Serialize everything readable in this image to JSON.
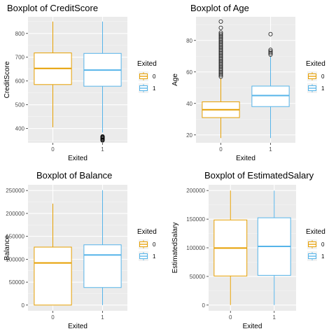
{
  "colors": {
    "group0": "#E69F00",
    "group1": "#56B4E9",
    "panel": "#EBEBEB",
    "grid_major": "#FFFFFF",
    "grid_minor": "#F5F5F5"
  },
  "chart_data": [
    {
      "type": "boxplot",
      "title": "Boxplot of CreditScore",
      "xlabel": "Exited",
      "ylabel": "CreditScore",
      "categories": [
        "0",
        "1"
      ],
      "ylim": [
        340,
        870
      ],
      "yticks": [
        400,
        500,
        600,
        700,
        800
      ],
      "ytick_labels": [
        "400",
        "500",
        "600",
        "700",
        "800"
      ],
      "grid": true,
      "legend": {
        "title": "Exited",
        "position": "right",
        "entries": [
          "0",
          "1"
        ]
      },
      "boxes": [
        {
          "category": "0",
          "whisker_low": 405,
          "q1": 585,
          "median": 653,
          "q3": 718,
          "whisker_high": 850,
          "outliers": []
        },
        {
          "category": "1",
          "whisker_low": 383,
          "q1": 578,
          "median": 646,
          "q3": 716,
          "whisker_high": 850,
          "outliers": [
            350,
            352,
            355,
            358,
            360,
            363,
            365,
            367
          ]
        }
      ]
    },
    {
      "type": "boxplot",
      "title": "Boxplot of Age",
      "xlabel": "Exited",
      "ylabel": "Age",
      "categories": [
        "0",
        "1"
      ],
      "ylim": [
        15,
        95
      ],
      "yticks": [
        20,
        40,
        60,
        80
      ],
      "ytick_labels": [
        "20",
        "40",
        "60",
        "80"
      ],
      "grid": true,
      "legend": {
        "title": "Exited",
        "position": "right",
        "entries": [
          "0",
          "1"
        ]
      },
      "boxes": [
        {
          "category": "0",
          "whisker_low": 18,
          "q1": 31,
          "median": 36,
          "q3": 41,
          "whisker_high": 56,
          "outliers": [
            57,
            58,
            59,
            60,
            61,
            62,
            63,
            64,
            65,
            66,
            67,
            68,
            69,
            70,
            71,
            72,
            73,
            74,
            75,
            76,
            77,
            78,
            79,
            80,
            81,
            82,
            83,
            84,
            85,
            88,
            92
          ]
        },
        {
          "category": "1",
          "whisker_low": 18,
          "q1": 38,
          "median": 45,
          "q3": 51,
          "whisker_high": 70,
          "outliers": [
            71,
            72,
            73,
            74,
            84
          ]
        }
      ]
    },
    {
      "type": "boxplot",
      "title": "Boxplot of Balance",
      "xlabel": "Exited",
      "ylabel": "Balance",
      "categories": [
        "0",
        "1"
      ],
      "ylim": [
        -12500,
        262500
      ],
      "yticks": [
        0,
        50000,
        100000,
        150000,
        200000,
        250000
      ],
      "ytick_labels": [
        "0",
        "50000",
        "100000",
        "150000",
        "200000",
        "250000"
      ],
      "grid": true,
      "legend": {
        "title": "Exited",
        "position": "right",
        "entries": [
          "0",
          "1"
        ]
      },
      "boxes": [
        {
          "category": "0",
          "whisker_low": 0,
          "q1": 0,
          "median": 92000,
          "q3": 126500,
          "whisker_high": 221500,
          "outliers": []
        },
        {
          "category": "1",
          "whisker_low": 0,
          "q1": 38300,
          "median": 109300,
          "q3": 131500,
          "whisker_high": 250900,
          "outliers": []
        }
      ]
    },
    {
      "type": "boxplot",
      "title": "Boxplot of EstimatedSalary",
      "xlabel": "Exited",
      "ylabel": "EstimatedSalary",
      "categories": [
        "0",
        "1"
      ],
      "ylim": [
        -10000,
        210000
      ],
      "yticks": [
        0,
        50000,
        100000,
        150000,
        200000
      ],
      "ytick_labels": [
        "0",
        "50000",
        "100000",
        "150000",
        "200000"
      ],
      "grid": true,
      "legend": {
        "title": "Exited",
        "position": "right",
        "entries": [
          "0",
          "1"
        ]
      },
      "boxes": [
        {
          "category": "0",
          "whisker_low": 90,
          "q1": 50800,
          "median": 99600,
          "q3": 148600,
          "whisker_high": 199990,
          "outliers": []
        },
        {
          "category": "1",
          "whisker_low": 11,
          "q1": 51900,
          "median": 102500,
          "q3": 152400,
          "whisker_high": 199800,
          "outliers": []
        }
      ]
    }
  ]
}
